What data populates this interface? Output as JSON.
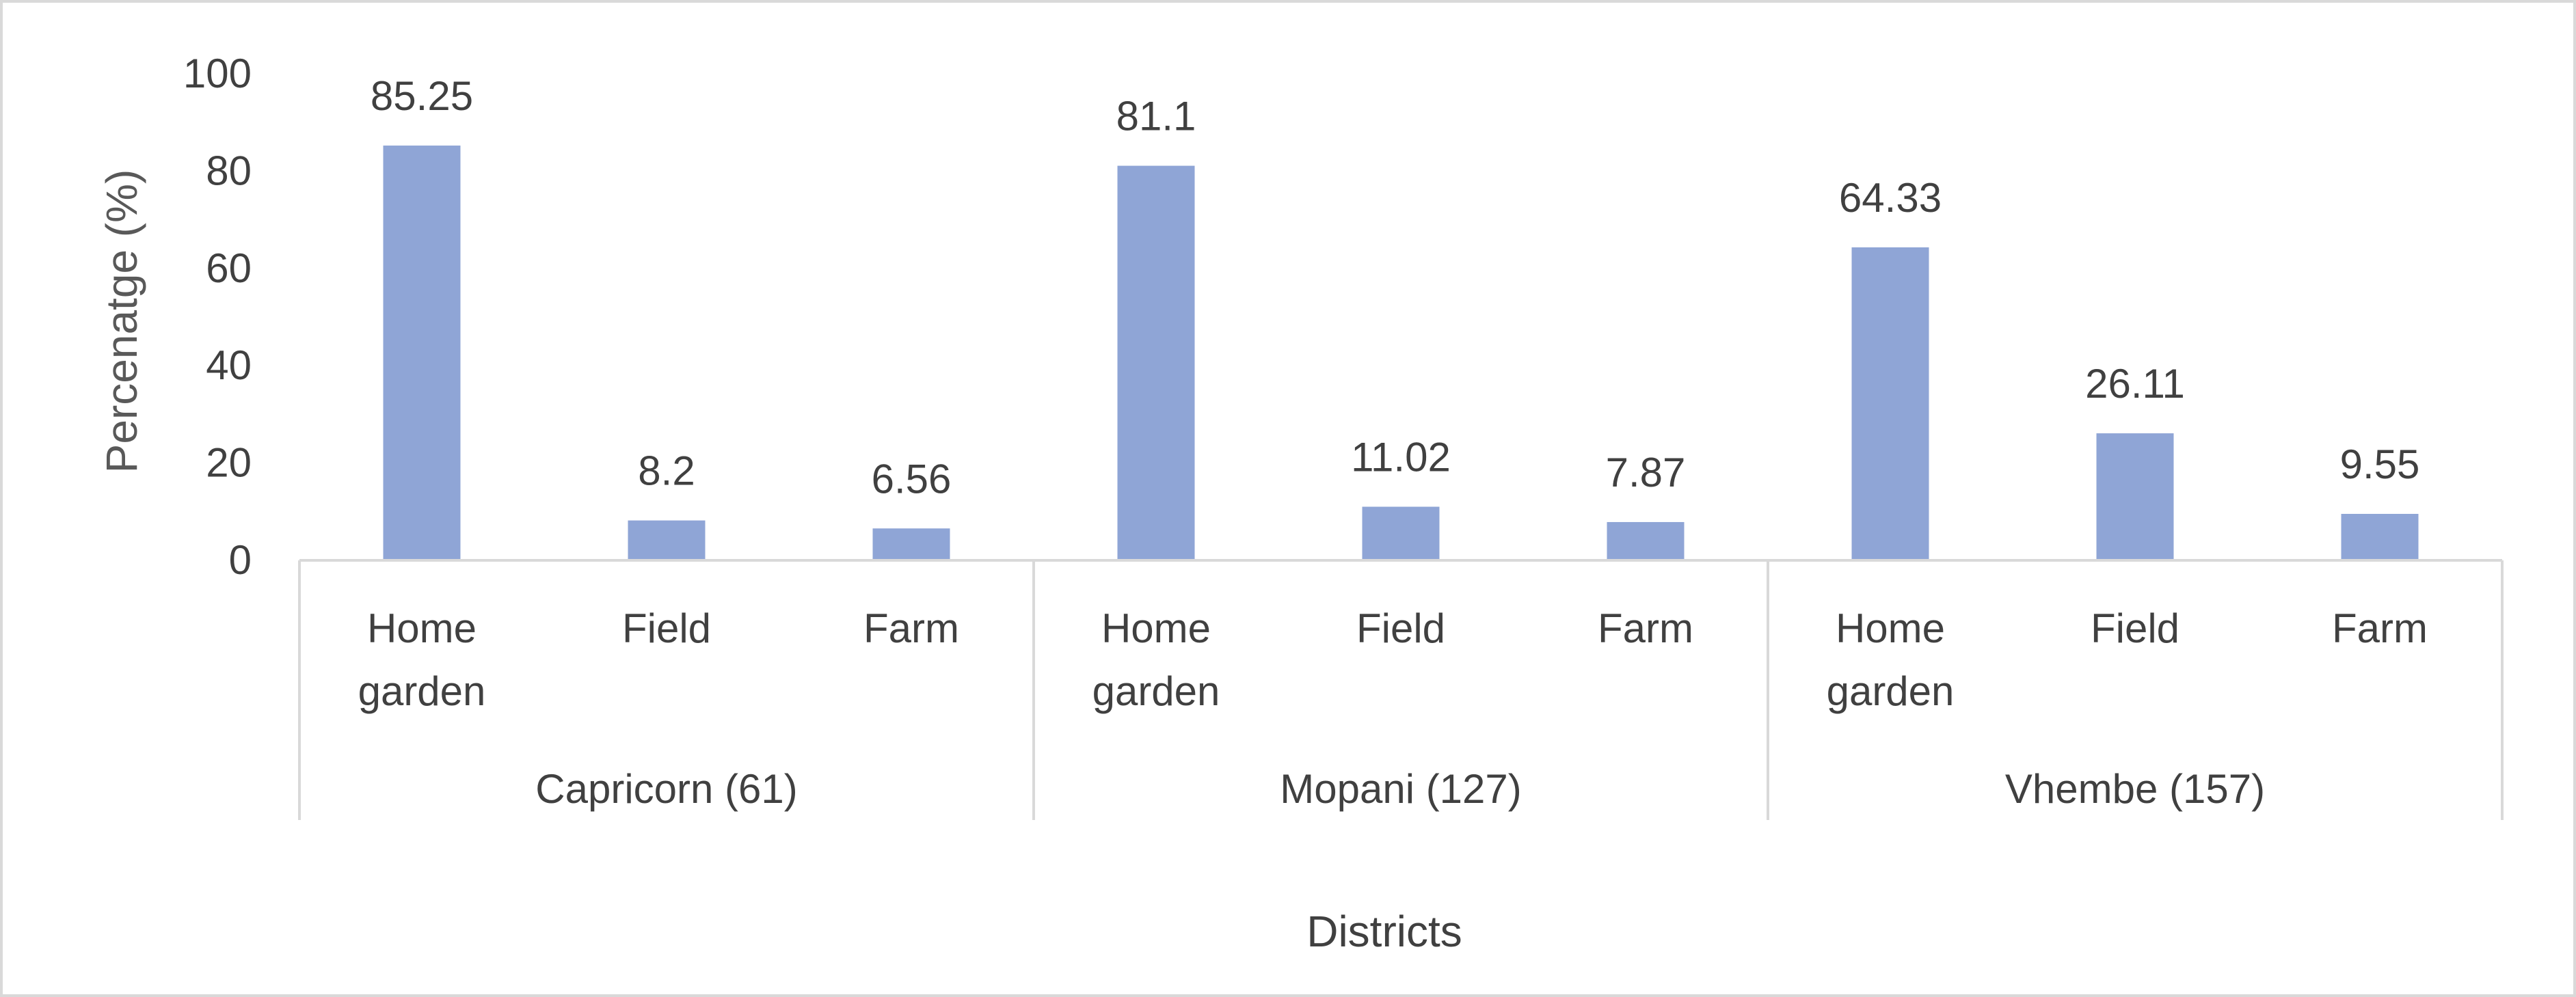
{
  "chart_data": {
    "type": "bar",
    "title": "",
    "ylabel": "Percenatge (%)",
    "xlabel": "Districts",
    "ylim": [
      0,
      100
    ],
    "yticks": [
      0,
      20,
      40,
      60,
      80,
      100
    ],
    "grid": false,
    "legend": "none",
    "colors": {
      "bar": "#8fa5d6",
      "axis": "#d9d9d9",
      "text": "#404040"
    },
    "groups": [
      {
        "name": "Capricorn (61)",
        "categories": [
          [
            "Home",
            "garden"
          ],
          [
            "Field"
          ],
          [
            "Farm"
          ]
        ],
        "values": [
          85.25,
          8.2,
          6.56
        ],
        "labels": [
          "85.25",
          "8.2",
          "6.56"
        ]
      },
      {
        "name": "Mopani (127)",
        "categories": [
          [
            "Home",
            "garden"
          ],
          [
            "Field"
          ],
          [
            "Farm"
          ]
        ],
        "values": [
          81.1,
          11.02,
          7.87
        ],
        "labels": [
          "81.1",
          "11.02",
          "7.87"
        ]
      },
      {
        "name": "Vhembe (157)",
        "categories": [
          [
            "Home",
            "garden"
          ],
          [
            "Field"
          ],
          [
            "Farm"
          ]
        ],
        "values": [
          64.33,
          26.11,
          9.55
        ],
        "labels": [
          "64.33",
          "26.11",
          "9.55"
        ]
      }
    ]
  }
}
